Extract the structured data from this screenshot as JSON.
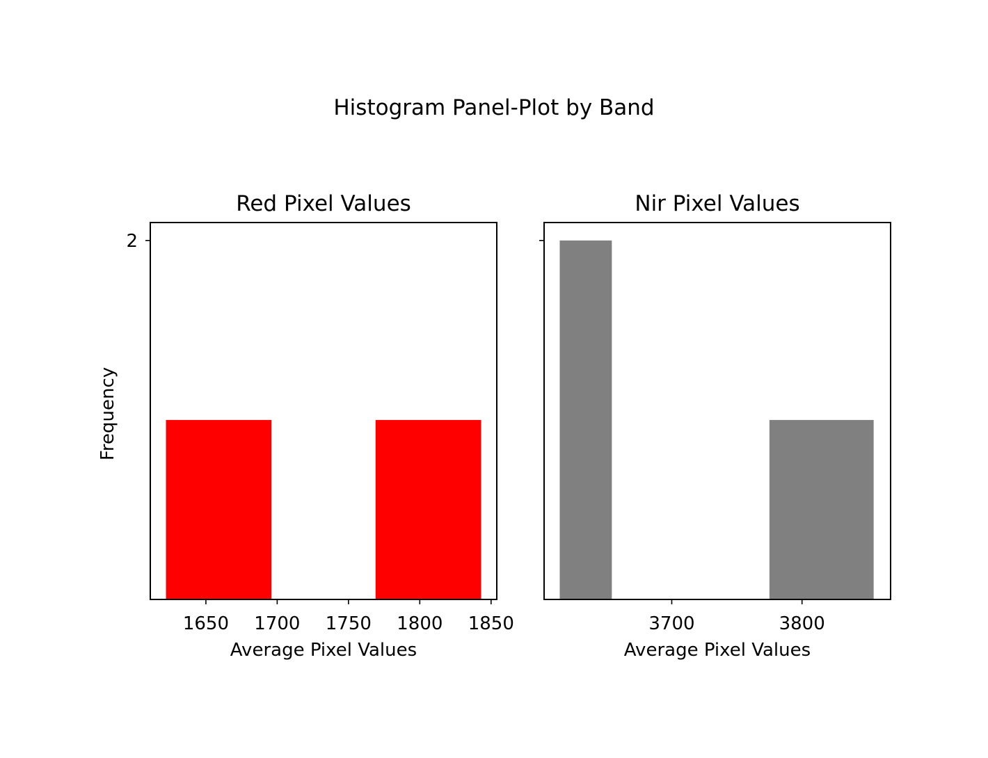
{
  "figure": {
    "suptitle": "Histogram Panel-Plot by Band",
    "shared_y_label": "Frequency"
  },
  "chart_data": [
    {
      "type": "bar",
      "title": "Red Pixel Values",
      "xlabel": "Average Pixel Values",
      "ylabel": "Frequency",
      "color": "#ff0000",
      "xlim": [
        1611,
        1854
      ],
      "ylim": [
        0,
        2.1
      ],
      "xticks": [
        1650,
        1700,
        1750,
        1800,
        1850
      ],
      "xtick_labels": [
        "1650",
        "1700",
        "1750",
        "1800",
        "1850"
      ],
      "yticks": [
        2
      ],
      "ytick_labels": [
        "2"
      ],
      "bins": [
        {
          "x0": 1622,
          "x1": 1696,
          "count": 1
        },
        {
          "x0": 1696,
          "x1": 1769,
          "count": 0
        },
        {
          "x0": 1769,
          "x1": 1843,
          "count": 1
        }
      ],
      "grid": false
    },
    {
      "type": "bar",
      "title": "Nir Pixel Values",
      "xlabel": "Average Pixel Values",
      "color": "#808080",
      "xlim": [
        3602,
        3868
      ],
      "ylim": [
        0,
        2.1
      ],
      "xticks": [
        3700,
        3800
      ],
      "xtick_labels": [
        "3700",
        "3800"
      ],
      "yticks": [
        2
      ],
      "ytick_labels": [],
      "bins": [
        {
          "x0": 3614,
          "x1": 3654,
          "count": 2
        },
        {
          "x0": 3654,
          "x1": 3775,
          "count": 0
        },
        {
          "x0": 3775,
          "x1": 3855,
          "count": 1
        }
      ],
      "grid": false
    }
  ]
}
